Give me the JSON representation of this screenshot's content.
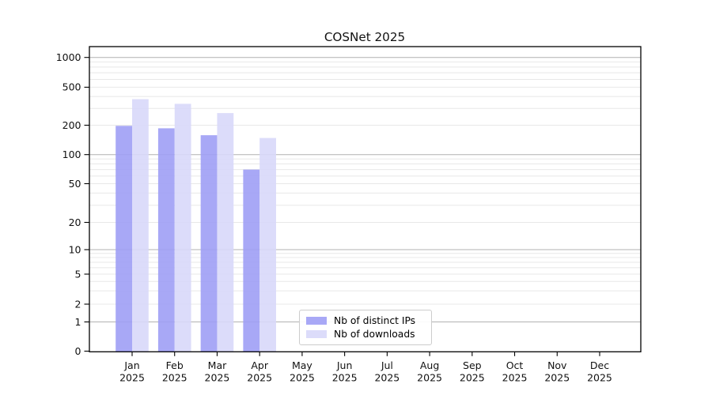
{
  "title": "COSNet 2025",
  "chart_data": {
    "type": "bar",
    "title": "COSNet 2025",
    "months": [
      "Jan",
      "Feb",
      "Mar",
      "Apr",
      "May",
      "Jun",
      "Jul",
      "Aug",
      "Sep",
      "Oct",
      "Nov",
      "Dec"
    ],
    "year": "2025",
    "series": [
      {
        "name": "Nb of distinct IPs",
        "color": "#9f9ff5",
        "values": [
          197,
          186,
          158,
          70,
          null,
          null,
          null,
          null,
          null,
          null,
          null,
          null
        ]
      },
      {
        "name": "Nb of downloads",
        "color": "#d8d8fa",
        "values": [
          375,
          335,
          268,
          148,
          null,
          null,
          null,
          null,
          null,
          null,
          null,
          null
        ]
      }
    ],
    "y_scale": "symlog",
    "y_ticks": [
      1000,
      500,
      200,
      100,
      50,
      20,
      10,
      5,
      2,
      1,
      0
    ],
    "ylim": [
      0,
      1300
    ],
    "grid": "both",
    "grid_major_color": "#b1b1b1",
    "grid_minor_color": "#e8e8e8",
    "legend_position": "lower center"
  }
}
